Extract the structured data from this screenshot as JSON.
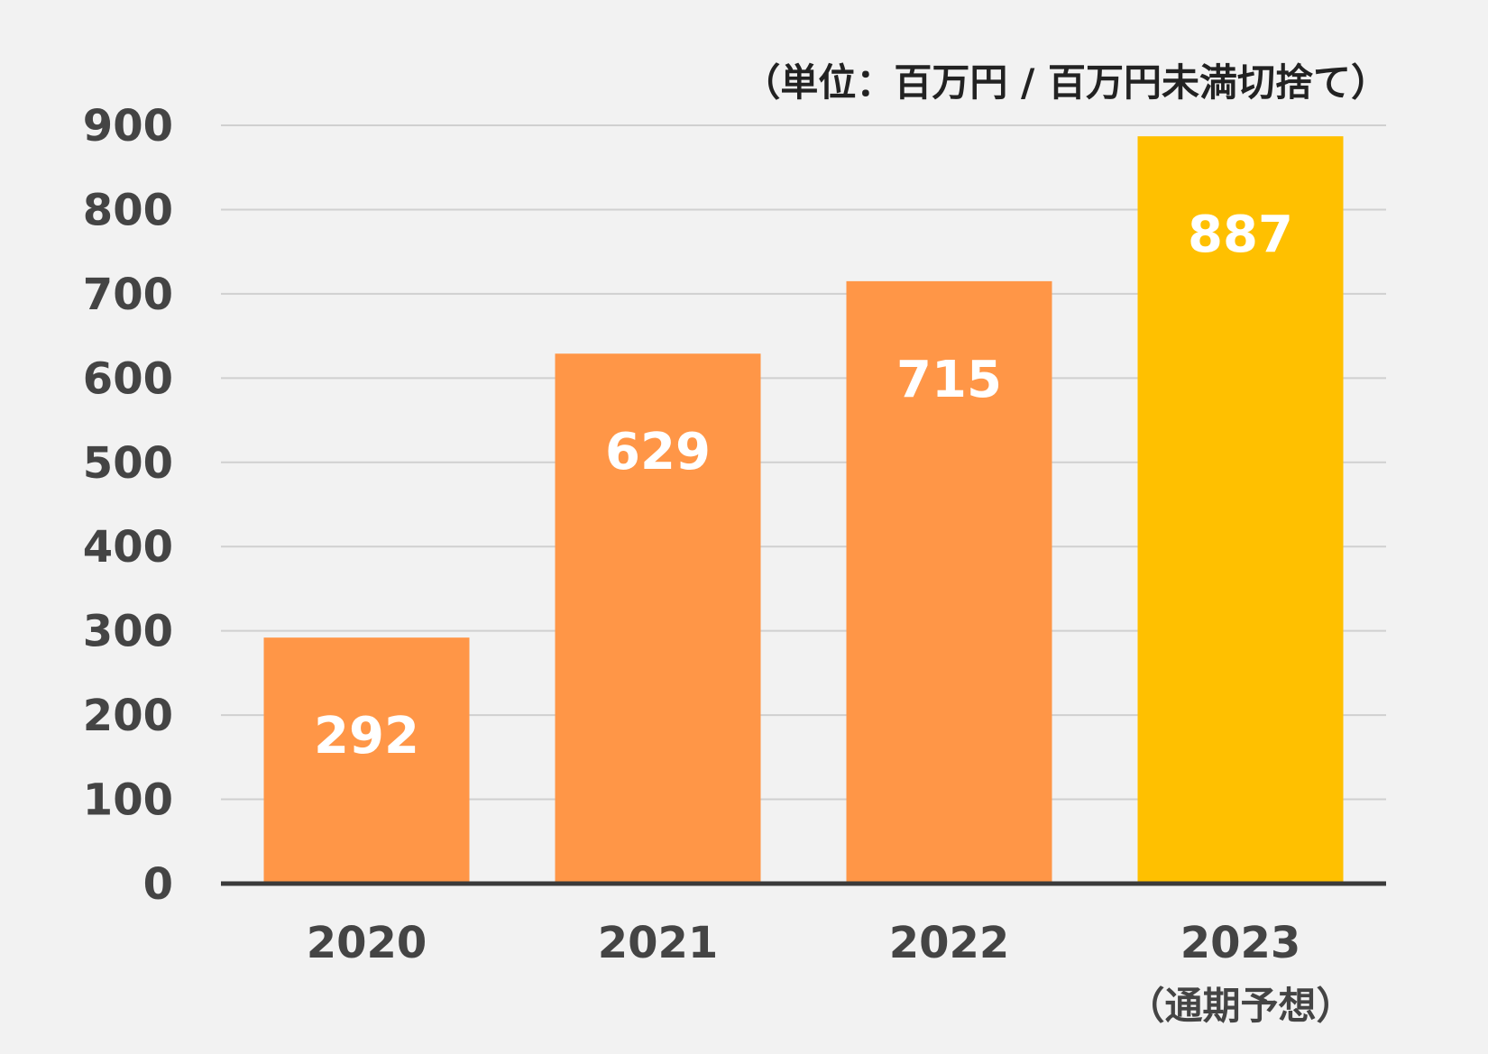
{
  "unit_note": "（単位：百万円 / 百万円未満切捨て）",
  "chart_data": {
    "type": "bar",
    "categories": [
      "2020",
      "2021",
      "2022",
      "2023"
    ],
    "category_notes": [
      "",
      "",
      "",
      "（通期予想）"
    ],
    "values": [
      292,
      629,
      715,
      887
    ],
    "data_labels": [
      "292",
      "629",
      "715",
      "887"
    ],
    "bar_colors": [
      "#ff9647",
      "#ff9647",
      "#ff9647",
      "#ffc000"
    ],
    "ylim": [
      0,
      900
    ],
    "yticks": [
      0,
      100,
      200,
      300,
      400,
      500,
      600,
      700,
      800,
      900
    ],
    "ytick_labels": [
      "0",
      "100",
      "200",
      "300",
      "400",
      "500",
      "600",
      "700",
      "800",
      "900"
    ],
    "grid": true,
    "title": "",
    "xlabel": "",
    "ylabel": ""
  }
}
